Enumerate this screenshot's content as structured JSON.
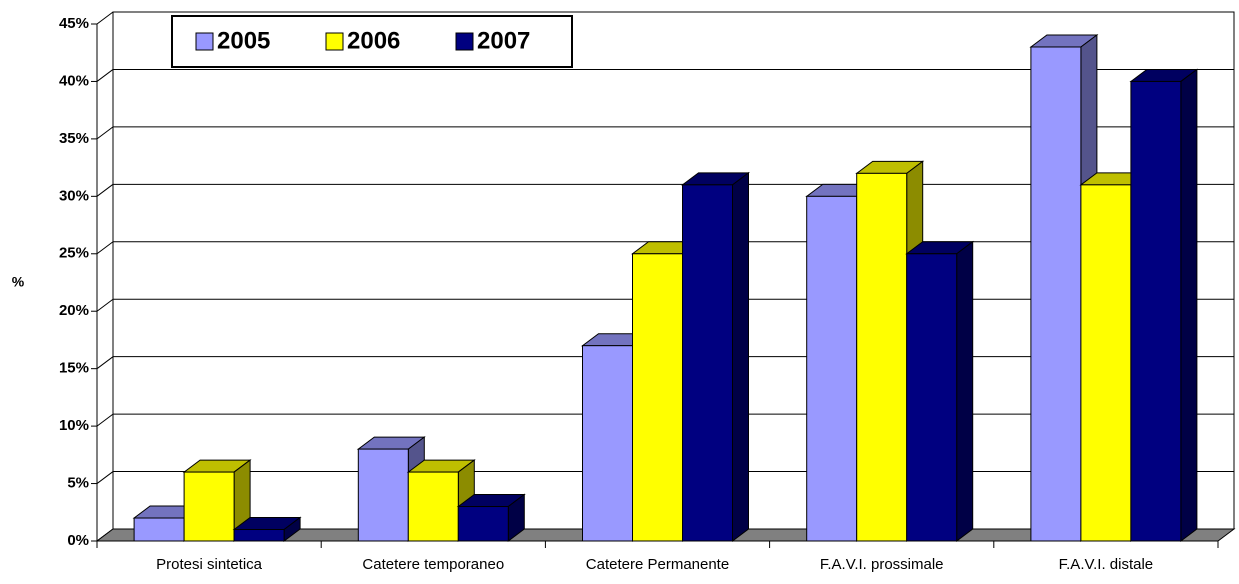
{
  "chart_data": {
    "type": "bar3d",
    "y_label": "%",
    "categories": [
      "Protesi sintetica",
      "Catetere temporaneo",
      "Catetere Permanente",
      "F.A.V.I. prossimale",
      "F.A.V.I. distale"
    ],
    "series": [
      {
        "name": "2005",
        "color": "#9999ff",
        "values": [
          2,
          8,
          17,
          30,
          43
        ]
      },
      {
        "name": "2006",
        "color": "#ffff00",
        "values": [
          6,
          6,
          25,
          32,
          31
        ]
      },
      {
        "name": "2007",
        "color": "#000080",
        "values": [
          1,
          3,
          31,
          25,
          40
        ]
      }
    ],
    "ylim": [
      0,
      45
    ],
    "yticks": [
      {
        "value": 0,
        "label": "0%"
      },
      {
        "value": 5,
        "label": "5%"
      },
      {
        "value": 10,
        "label": "10%"
      },
      {
        "value": 15,
        "label": "15%"
      },
      {
        "value": 20,
        "label": "20%"
      },
      {
        "value": 25,
        "label": "25%"
      },
      {
        "value": 30,
        "label": "30%"
      },
      {
        "value": 35,
        "label": "35%"
      },
      {
        "value": 40,
        "label": "40%"
      },
      {
        "value": 45,
        "label": "45%"
      }
    ],
    "grid": true,
    "legend": "upper left"
  }
}
